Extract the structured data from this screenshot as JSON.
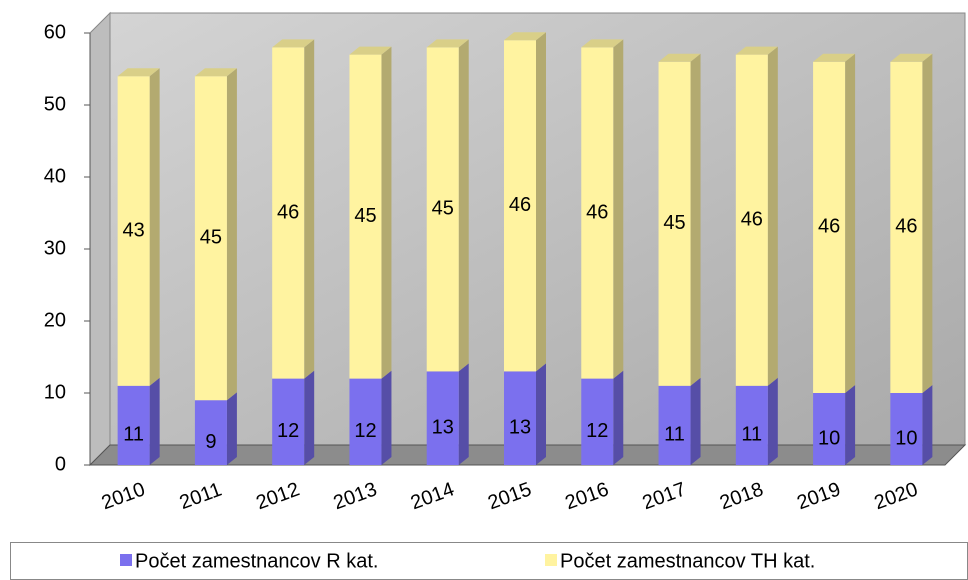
{
  "chart_data": {
    "type": "bar",
    "stacked": true,
    "categories": [
      "2010",
      "2011",
      "2012",
      "2013",
      "2014",
      "2015",
      "2016",
      "2017",
      "2018",
      "2019",
      "2020"
    ],
    "series": [
      {
        "name": "Počet zamestnancov R kat.",
        "color": "#7b70ee",
        "values": [
          11,
          9,
          12,
          12,
          13,
          13,
          12,
          11,
          11,
          10,
          10
        ]
      },
      {
        "name": "Počet zamestnancov TH kat.",
        "color": "#fff3a0",
        "values": [
          43,
          45,
          46,
          45,
          45,
          46,
          46,
          45,
          46,
          46,
          46
        ]
      }
    ],
    "ylim": [
      0,
      60
    ],
    "yticks": [
      0,
      10,
      20,
      30,
      40,
      50,
      60
    ],
    "grid": false,
    "legend": "bottom"
  }
}
